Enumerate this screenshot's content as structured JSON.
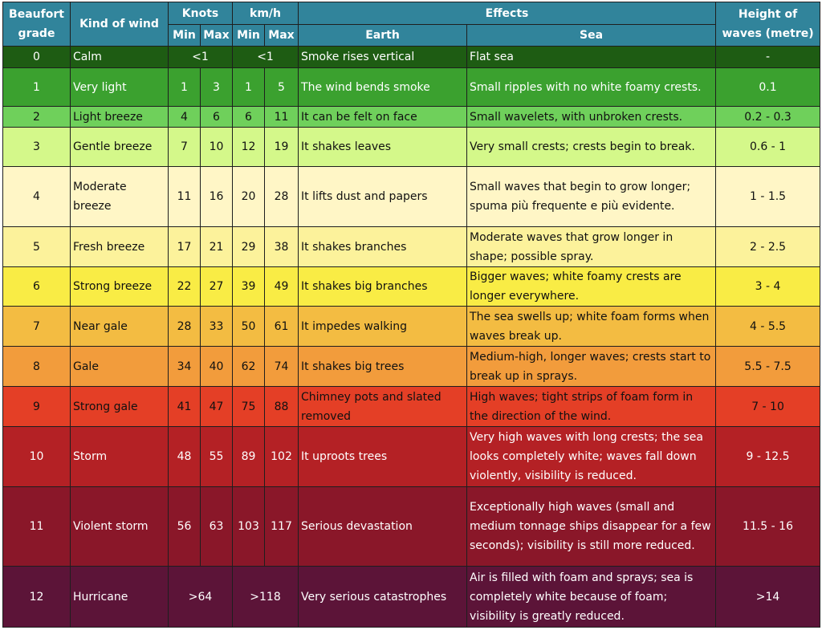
{
  "headers": {
    "grade": "Beaufort grade",
    "kind": "Kind of wind",
    "knots": "Knots",
    "kmh": "km/h",
    "effects": "Effects",
    "height": "Height of waves (metre)",
    "min": "Min",
    "max": "Max",
    "earth": "Earth",
    "sea": "Sea"
  },
  "rows": [
    {
      "grade": "0",
      "kind": "Calm",
      "knots": "<1",
      "kmh": "<1",
      "earth": "Smoke rises vertical",
      "sea": "Flat sea",
      "height": "-"
    },
    {
      "grade": "1",
      "kind": "Very light",
      "knots_min": "1",
      "knots_max": "3",
      "kmh_min": "1",
      "kmh_max": "5",
      "earth": "The wind bends smoke",
      "sea": "Small ripples with no white foamy crests.",
      "height": "0.1"
    },
    {
      "grade": "2",
      "kind": "Light breeze",
      "knots_min": "4",
      "knots_max": "6",
      "kmh_min": "6",
      "kmh_max": "11",
      "earth": "It can be felt on face",
      "sea": "Small wavelets, with unbroken crests.",
      "height": "0.2 - 0.3"
    },
    {
      "grade": "3",
      "kind": "Gentle breeze",
      "knots_min": "7",
      "knots_max": "10",
      "kmh_min": "12",
      "kmh_max": "19",
      "earth": "It shakes leaves",
      "sea": "Very small crests; crests begin to break.",
      "height": "0.6 - 1"
    },
    {
      "grade": "4",
      "kind": "Moderate breeze",
      "knots_min": "11",
      "knots_max": "16",
      "kmh_min": "20",
      "kmh_max": "28",
      "earth": "It lifts dust and papers",
      "sea": "Small waves that begin to grow longer; spuma più frequente e più evidente.",
      "height": "1 - 1.5"
    },
    {
      "grade": "5",
      "kind": "Fresh breeze",
      "knots_min": "17",
      "knots_max": "21",
      "kmh_min": "29",
      "kmh_max": "38",
      "earth": "It shakes branches",
      "sea": "Moderate waves that grow longer in shape; possible spray.",
      "height": "2 - 2.5"
    },
    {
      "grade": "6",
      "kind": "Strong breeze",
      "knots_min": "22",
      "knots_max": "27",
      "kmh_min": "39",
      "kmh_max": "49",
      "earth": "It shakes big branches",
      "sea": "Bigger waves; white foamy crests are longer everywhere.",
      "height": "3 - 4"
    },
    {
      "grade": "7",
      "kind": "Near gale",
      "knots_min": "28",
      "knots_max": "33",
      "kmh_min": "50",
      "kmh_max": "61",
      "earth": "It impedes walking",
      "sea": "The sea swells up; white foam forms when waves break up.",
      "height": "4 - 5.5"
    },
    {
      "grade": "8",
      "kind": "Gale",
      "knots_min": "34",
      "knots_max": "40",
      "kmh_min": "62",
      "kmh_max": "74",
      "earth": "It shakes big trees",
      "sea": "Medium-high, longer waves; crests start to break up in sprays.",
      "height": "5.5 - 7.5"
    },
    {
      "grade": "9",
      "kind": "Strong gale",
      "knots_min": "41",
      "knots_max": "47",
      "kmh_min": "75",
      "kmh_max": "88",
      "earth": "Chimney pots and slated removed",
      "sea": "High waves; tight strips of foam form in the direction of the wind.",
      "height": "7 - 10"
    },
    {
      "grade": "10",
      "kind": "Storm",
      "knots_min": "48",
      "knots_max": "55",
      "kmh_min": "89",
      "kmh_max": "102",
      "earth": "It uproots trees",
      "sea": "Very high waves with long crests; the sea looks completely white; waves fall down violently, visibility is reduced.",
      "height": "9 - 12.5"
    },
    {
      "grade": "11",
      "kind": "Violent storm",
      "knots_min": "56",
      "knots_max": "63",
      "kmh_min": "103",
      "kmh_max": "117",
      "earth": "Serious devastation",
      "sea": "Exceptionally high waves (small and medium tonnage ships disappear for a few seconds); visibility is still more reduced.",
      "height": "11.5 - 16"
    },
    {
      "grade": "12",
      "kind": "Hurricane",
      "knots": ">64",
      "kmh": ">118",
      "earth": "Very serious catastrophes",
      "sea": "Air is filled with foam and sprays; sea is completely white because of foam; visibility is greatly reduced.",
      "height": ">14"
    }
  ]
}
